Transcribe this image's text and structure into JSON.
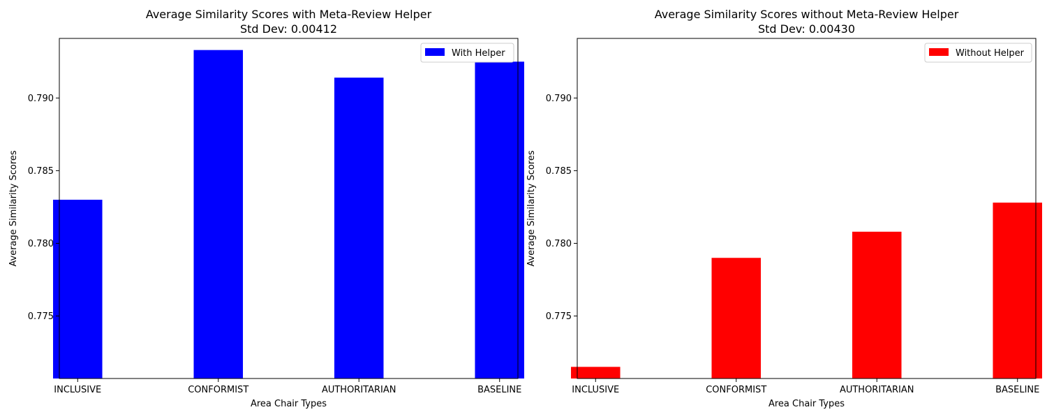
{
  "chart_data": [
    {
      "type": "bar",
      "title_line1": "Average Similarity Scores with Meta-Review Helper",
      "title_line2": "Std Dev: 0.00412",
      "xlabel": "Area Chair Types",
      "ylabel": "Average Similarity Scores",
      "categories": [
        "INCLUSIVE",
        "CONFORMIST",
        "AUTHORITARIAN",
        "BASELINE"
      ],
      "series": [
        {
          "name": "With Helper",
          "values": [
            0.783,
            0.7933,
            0.7914,
            0.7925
          ]
        }
      ],
      "ylim": [
        0.7707,
        0.7941
      ],
      "yticks": [
        0.775,
        0.78,
        0.785,
        0.79
      ],
      "ytick_labels": [
        "0.775",
        "0.780",
        "0.785",
        "0.790"
      ],
      "legend": "top-right",
      "grid": false,
      "color": "#0000ff"
    },
    {
      "type": "bar",
      "title_line1": "Average Similarity Scores without Meta-Review Helper",
      "title_line2": "Std Dev: 0.00430",
      "xlabel": "Area Chair Types",
      "ylabel": "Average Similarity Scores",
      "categories": [
        "INCLUSIVE",
        "CONFORMIST",
        "AUTHORITARIAN",
        "BASELINE"
      ],
      "series": [
        {
          "name": "Without Helper",
          "values": [
            0.7715,
            0.779,
            0.7808,
            0.7828
          ]
        }
      ],
      "ylim": [
        0.7707,
        0.7941
      ],
      "yticks": [
        0.775,
        0.78,
        0.785,
        0.79
      ],
      "ytick_labels": [
        "0.775",
        "0.780",
        "0.785",
        "0.790"
      ],
      "legend": "top-right",
      "grid": false,
      "color": "#ff0000"
    }
  ]
}
